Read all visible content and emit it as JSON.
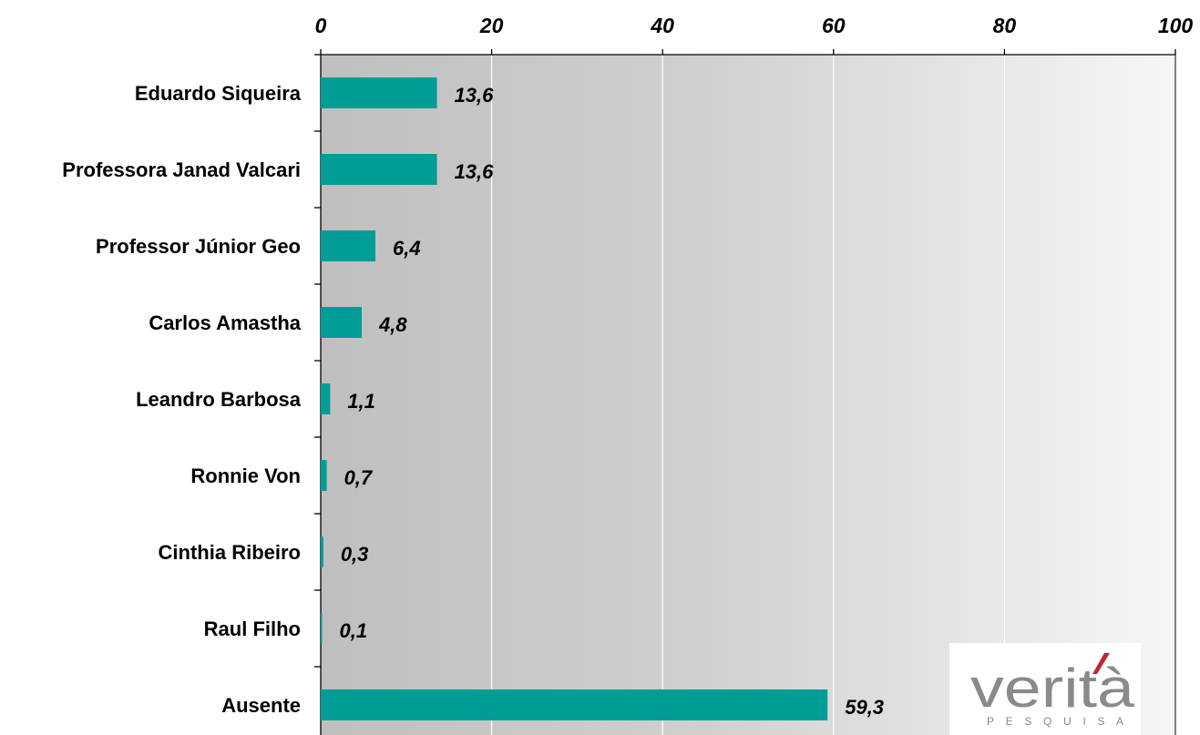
{
  "chart_data": {
    "type": "bar",
    "orientation": "horizontal",
    "categories": [
      "Eduardo Siqueira",
      "Professora Janad Valcari",
      "Professor Júnior Geo",
      "Carlos Amastha",
      "Leandro Barbosa",
      "Ronnie Von",
      "Cinthia Ribeiro",
      "Raul Filho",
      "Ausente"
    ],
    "values": [
      13.6,
      13.6,
      6.4,
      4.8,
      1.1,
      0.7,
      0.3,
      0.1,
      59.3
    ],
    "value_labels": [
      "13,6",
      "13,6",
      "6,4",
      "4,8",
      "1,1",
      "0,7",
      "0,3",
      "0,1",
      "59,3"
    ],
    "xlim": [
      0,
      100
    ],
    "x_ticks": [
      0,
      20,
      40,
      60,
      80,
      100
    ],
    "x_axis_position": "top",
    "grid": true,
    "bar_color": "#009c96",
    "title": "",
    "xlabel": "",
    "ylabel": ""
  },
  "logo": {
    "icon": "verita-pesquisa-logo",
    "wordmark": "verità",
    "tagline": "PESQUISA",
    "text_color": "#8a8a8a",
    "accent_color": "#c0272d"
  }
}
